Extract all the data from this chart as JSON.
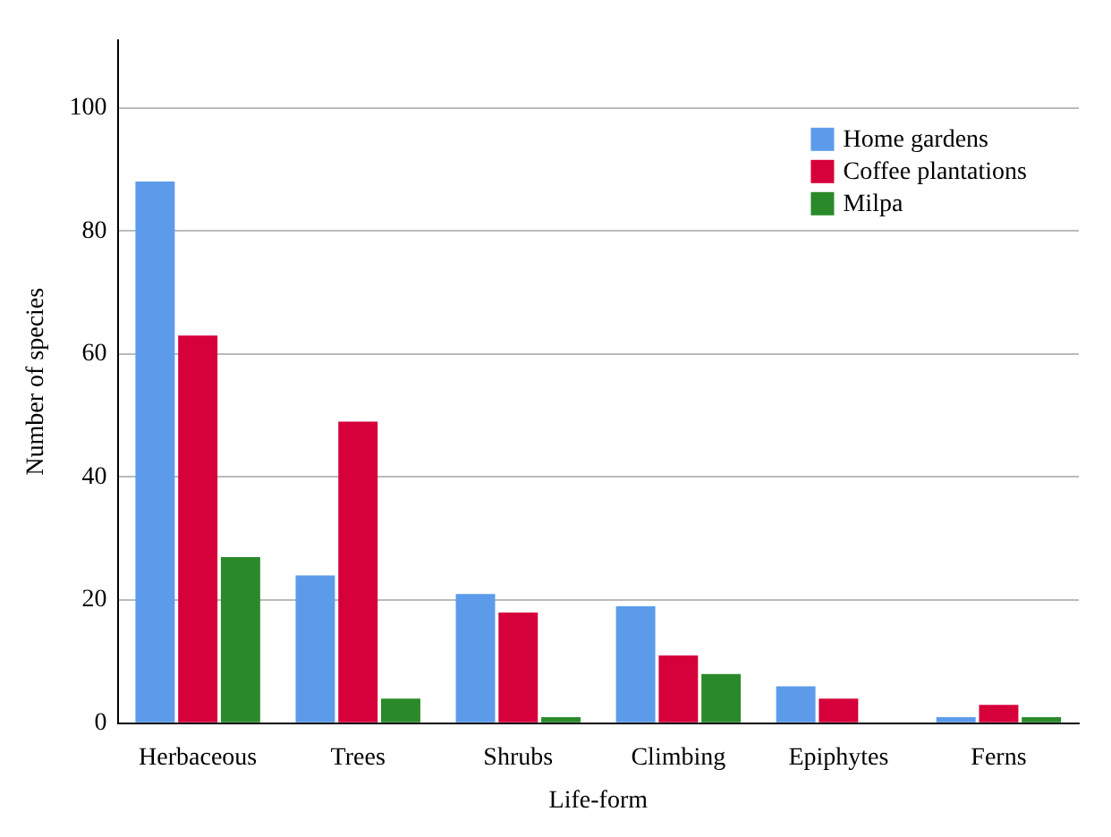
{
  "chart_data": {
    "type": "bar",
    "xlabel": "Life-form",
    "ylabel": "Number of species",
    "categories": [
      "Herbaceous",
      "Trees",
      "Shrubs",
      "Climbing",
      "Epiphytes",
      "Ferns"
    ],
    "series": [
      {
        "name": "Home gardens",
        "color": "#5b9bea",
        "values": [
          88,
          24,
          21,
          19,
          6,
          1
        ]
      },
      {
        "name": "Coffee plantations",
        "color": "#d6003a",
        "values": [
          63,
          49,
          18,
          11,
          4,
          3
        ]
      },
      {
        "name": "Milpa",
        "color": "#2a8a2a",
        "values": [
          27,
          4,
          1,
          8,
          0,
          1
        ]
      }
    ],
    "ylim": [
      0,
      111
    ],
    "yticks": [
      0,
      20,
      40,
      60,
      80,
      100
    ],
    "grid": "y",
    "legend": "top right"
  }
}
